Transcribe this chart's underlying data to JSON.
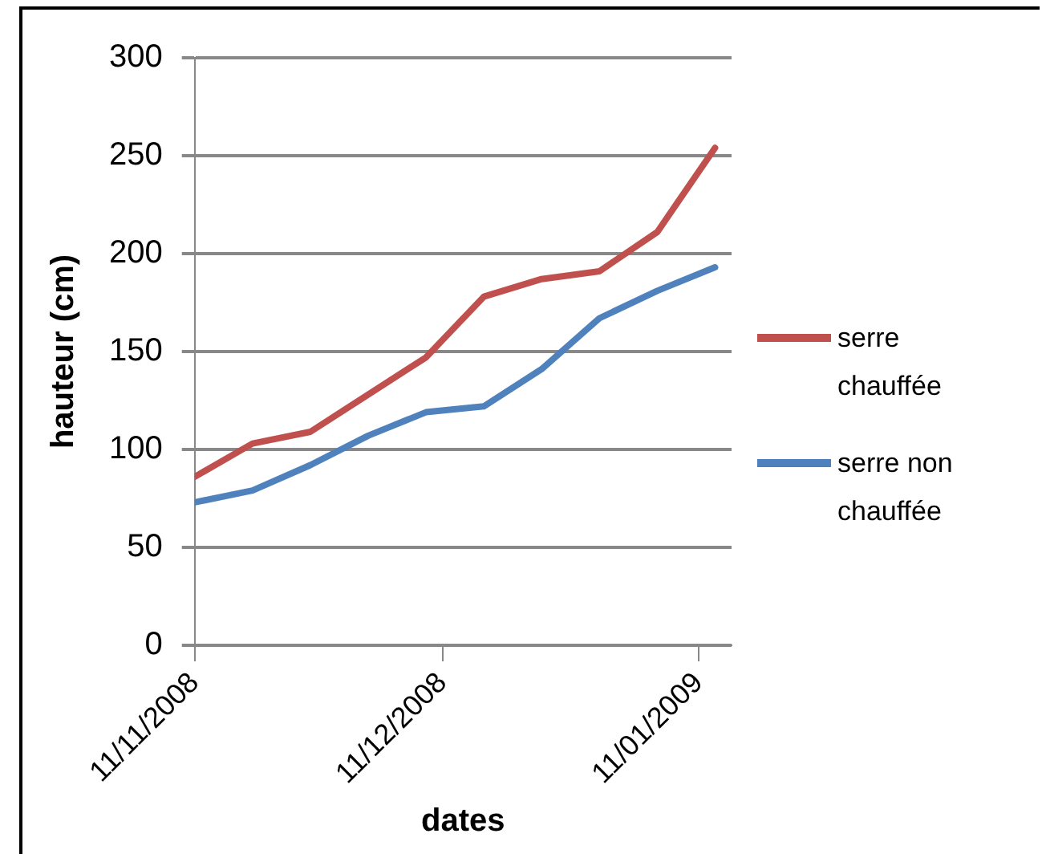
{
  "chart_data": {
    "type": "line",
    "xlabel": "dates",
    "ylabel": "hauteur (cm)",
    "x": [
      "2008-11-11",
      "2008-11-18",
      "2008-11-25",
      "2008-12-02",
      "2008-12-09",
      "2008-12-16",
      "2008-12-23",
      "2008-12-30",
      "2009-01-06",
      "2009-01-13"
    ],
    "series": [
      {
        "name": "serre chauffée",
        "color": "#c0504d",
        "values": [
          86,
          103,
          109,
          128,
          147,
          178,
          187,
          191,
          211,
          254
        ]
      },
      {
        "name": "serre non chauffée",
        "color": "#4f81bd",
        "values": [
          73,
          79,
          92,
          107,
          119,
          122,
          141,
          167,
          181,
          193
        ]
      }
    ],
    "xlim": [
      "2008-11-11",
      "2009-01-15"
    ],
    "xticks": [
      {
        "value": "2008-11-11",
        "label": "11/11/2008"
      },
      {
        "value": "2008-12-11",
        "label": "11/12/2008"
      },
      {
        "value": "2009-01-11",
        "label": "11/01/2009"
      }
    ],
    "ylim": [
      0,
      300
    ],
    "yticks": [
      0,
      50,
      100,
      150,
      200,
      250,
      300
    ],
    "grid": "y",
    "legend": "right",
    "marker": "none",
    "line_style": "solid"
  }
}
